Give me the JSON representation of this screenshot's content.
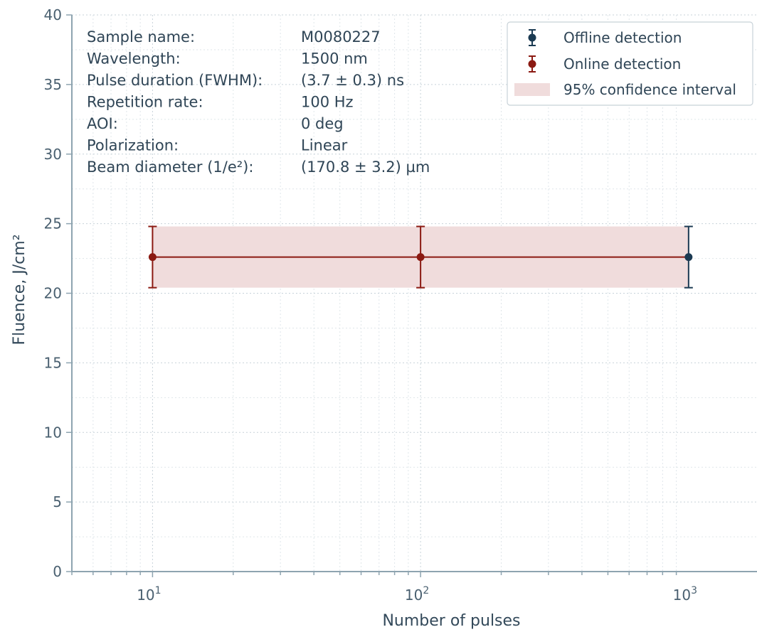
{
  "chart_data": {
    "type": "scatter",
    "xscale": "log",
    "xlabel": "Number of pulses",
    "ylabel": "Fluence, J/cm²",
    "xlim": [
      5,
      1800
    ],
    "ylim": [
      0,
      40
    ],
    "grid": true,
    "x_ticks": [
      {
        "value": 10,
        "base": "10",
        "exp": "1"
      },
      {
        "value": 100,
        "base": "10",
        "exp": "2"
      },
      {
        "value": 1000,
        "base": "10",
        "exp": "3"
      }
    ],
    "y_ticks": [
      0,
      5,
      10,
      15,
      20,
      25,
      30,
      35,
      40
    ],
    "series": [
      {
        "name": "Offline detection",
        "color": "#1b3a52",
        "points": [
          {
            "x": 1000,
            "y": 22.6,
            "err_low": 20.4,
            "err_high": 24.8
          }
        ]
      },
      {
        "name": "Online detection",
        "color": "#8b1a12",
        "points": [
          {
            "x": 10,
            "y": 22.6,
            "err_low": 20.4,
            "err_high": 24.8
          },
          {
            "x": 100,
            "y": 22.6,
            "err_low": 20.4,
            "err_high": 24.8
          }
        ]
      }
    ],
    "trend_line": {
      "y": 22.6,
      "from_x": 10,
      "to_x": 1000
    },
    "confidence_band": {
      "name": "95% confidence interval",
      "color": "#f0dcdc",
      "low": 20.4,
      "high": 24.8,
      "from_x": 10,
      "to_x": 1000
    },
    "legend": {
      "position": "top-right"
    }
  },
  "info_block": [
    {
      "key": "Sample name:",
      "value": "M0080227"
    },
    {
      "key": "Wavelength:",
      "value": "1500 nm"
    },
    {
      "key": "Pulse duration (FWHM):",
      "value": "(3.7 ± 0.3) ns"
    },
    {
      "key": "Repetition rate:",
      "value": "100 Hz"
    },
    {
      "key": "AOI:",
      "value": "0 deg"
    },
    {
      "key": "Polarization:",
      "value": "Linear"
    },
    {
      "key": "Beam diameter (1/e²):",
      "value": "(170.8 ± 3.2) µm"
    }
  ]
}
